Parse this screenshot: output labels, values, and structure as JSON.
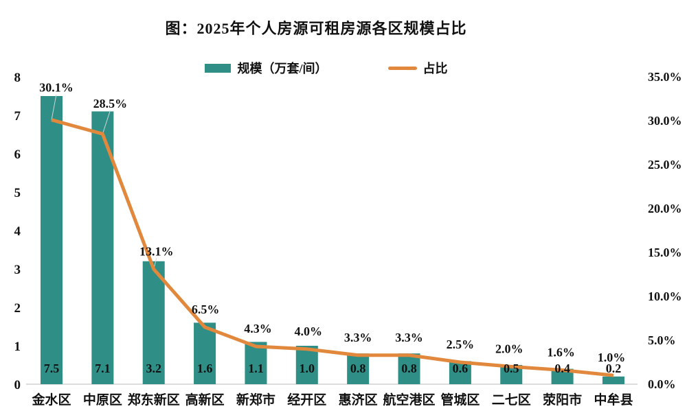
{
  "title": "图：2025年个人房源可租房源各区规模占比",
  "legend": {
    "bars_label": "规模（万套/间）",
    "line_label": "占比"
  },
  "colors": {
    "bar": "#2f8e85",
    "line": "#e1883c",
    "text": "#111111",
    "axis_line": "#c6c6c6",
    "leader_line": "#c9d6d6"
  },
  "chart_data": {
    "type": "bar",
    "subtype": "combo-bar-line",
    "title": "图：2025年个人房源可租房源各区规模占比",
    "grid": false,
    "legend_position": "top",
    "categories": [
      "金水区",
      "中原区",
      "郑东新区",
      "高新区",
      "新郑市",
      "经开区",
      "惠济区",
      "航空港区",
      "管城区",
      "二七区",
      "荥阳市",
      "中牟县"
    ],
    "series": [
      {
        "name": "规模（万套/间）",
        "type": "bar",
        "axis": "left",
        "values": [
          7.5,
          7.1,
          3.2,
          1.6,
          1.1,
          1.0,
          0.8,
          0.8,
          0.6,
          0.5,
          0.4,
          0.2
        ]
      },
      {
        "name": "占比",
        "type": "line",
        "axis": "right",
        "values": [
          30.1,
          28.5,
          13.1,
          6.5,
          4.3,
          4.0,
          3.3,
          3.3,
          2.5,
          2.0,
          1.6,
          1.0
        ]
      }
    ],
    "bar_value_labels": [
      "7.5",
      "7.1",
      "3.2",
      "1.6",
      "1.1",
      "1.0",
      "0.8",
      "0.8",
      "0.6",
      "0.5",
      "0.4",
      "0.2"
    ],
    "line_value_labels": [
      "30.1%",
      "28.5%",
      "13.1%",
      "6.5%",
      "4.3%",
      "4.0%",
      "3.3%",
      "3.3%",
      "2.5%",
      "2.0%",
      "1.6%",
      "1.0%"
    ],
    "left_axis": {
      "min": 0,
      "max": 8,
      "ticks": [
        "8",
        "7",
        "6",
        "5",
        "4",
        "3",
        "2",
        "1",
        "0"
      ]
    },
    "right_axis": {
      "min": 0,
      "max": 35,
      "ticks": [
        "35.0%",
        "30.0%",
        "25.0%",
        "20.0%",
        "15.0%",
        "10.0%",
        "5.0%",
        "0.0%"
      ]
    }
  }
}
